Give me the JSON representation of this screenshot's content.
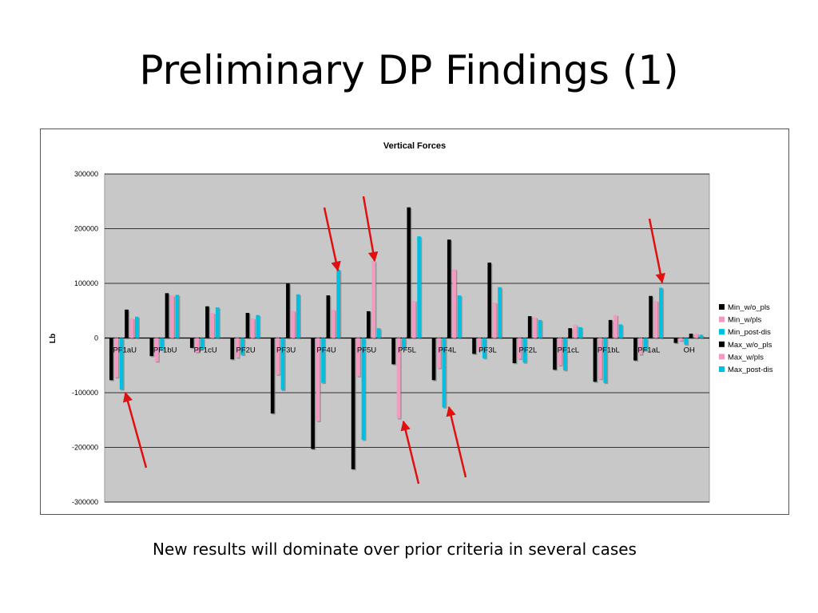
{
  "slide": {
    "title": "Preliminary DP Findings (1)",
    "caption": "New results will dominate over prior criteria in several cases"
  },
  "colors": {
    "plot_bg": "#c8c8c8",
    "series": [
      "#000000",
      "#f49ac2",
      "#00bfe0",
      "#000000",
      "#f49ac2",
      "#00bfe0"
    ],
    "arrow": "#e01010"
  },
  "chart_data": {
    "type": "bar",
    "title": "Vertical Forces",
    "ylabel": "Lb",
    "xlabel": "",
    "ylim": [
      -300000,
      300000
    ],
    "yticks": [
      300000,
      200000,
      100000,
      0,
      -100000,
      -200000,
      -300000
    ],
    "grid": true,
    "legend_position": "right",
    "categories": [
      "PF1aU",
      "PF1bU",
      "PF1cU",
      "PF2U",
      "PF3U",
      "PF4U",
      "PF5U",
      "PF5L",
      "PF4L",
      "PF3L",
      "PF2L",
      "PF1cL",
      "PF1bL",
      "PF1aL",
      "OH"
    ],
    "series": [
      {
        "name": "Min_w/o_pls",
        "values": [
          -77000,
          -33000,
          -18000,
          -39000,
          -138000,
          -203000,
          -240000,
          -48000,
          -77000,
          -29000,
          -46000,
          -58000,
          -80000,
          -41000,
          -9000
        ]
      },
      {
        "name": "Min_w/pls",
        "values": [
          -72000,
          -43000,
          -26000,
          -36000,
          -67000,
          -152000,
          -70000,
          -147000,
          -55000,
          -23000,
          -38000,
          -50000,
          -75000,
          -30000,
          -5000
        ]
      },
      {
        "name": "Min_post-dis",
        "values": [
          -94000,
          -22000,
          -20000,
          -31000,
          -95000,
          -82000,
          -186000,
          -19000,
          -127000,
          -37000,
          -45000,
          -59000,
          -82000,
          -23000,
          -12000
        ]
      },
      {
        "name": "Max_w/o_pls",
        "values": [
          52000,
          82000,
          58000,
          46000,
          100000,
          78000,
          49000,
          239000,
          180000,
          138000,
          40000,
          18000,
          33000,
          77000,
          8000
        ]
      },
      {
        "name": "Max_w/pls",
        "values": [
          36000,
          78000,
          46000,
          36000,
          50000,
          52000,
          141000,
          68000,
          126000,
          65000,
          38000,
          24000,
          42000,
          68000,
          8000
        ]
      },
      {
        "name": "Max_post-dis",
        "values": [
          39000,
          79000,
          56000,
          42000,
          80000,
          125000,
          18000,
          186000,
          78000,
          93000,
          33000,
          20000,
          25000,
          92000,
          6000
        ]
      }
    ]
  }
}
